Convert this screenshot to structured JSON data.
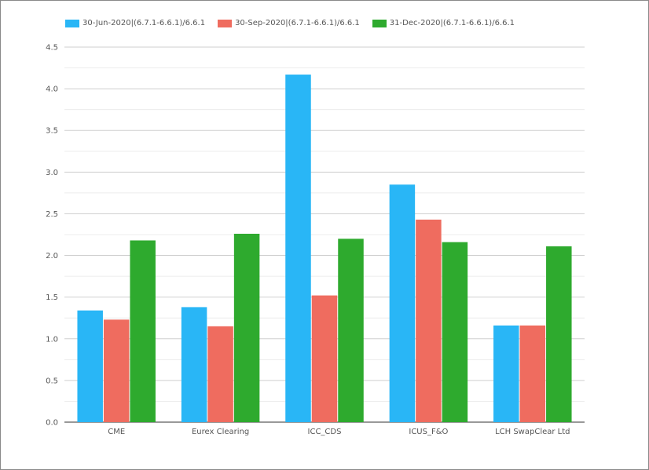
{
  "chart_data": {
    "type": "bar",
    "categories": [
      "CME",
      "Eurex Clearing",
      "ICC_CDS",
      "ICUS_F&O",
      "LCH SwapClear Ltd"
    ],
    "series": [
      {
        "name": "30-Jun-2020|(6.7.1-6.6.1)/6.6.1",
        "color": "#29b6f6",
        "values": [
          1.34,
          1.38,
          4.17,
          2.85,
          1.16
        ]
      },
      {
        "name": "30-Sep-2020|(6.7.1-6.6.1)/6.6.1",
        "color": "#ef6c5f",
        "values": [
          1.23,
          1.15,
          1.52,
          2.43,
          1.16
        ]
      },
      {
        "name": "31-Dec-2020|(6.7.1-6.6.1)/6.6.1",
        "color": "#2eaa2e",
        "values": [
          2.18,
          2.26,
          2.2,
          2.16,
          2.11
        ]
      }
    ],
    "yticks": [
      "0.0",
      "0.5",
      "1.0",
      "1.5",
      "2.0",
      "2.5",
      "3.0",
      "3.5",
      "4.0",
      "4.5"
    ],
    "ylim": [
      0,
      4.5
    ],
    "grid": true,
    "legend_position": "top-left"
  }
}
